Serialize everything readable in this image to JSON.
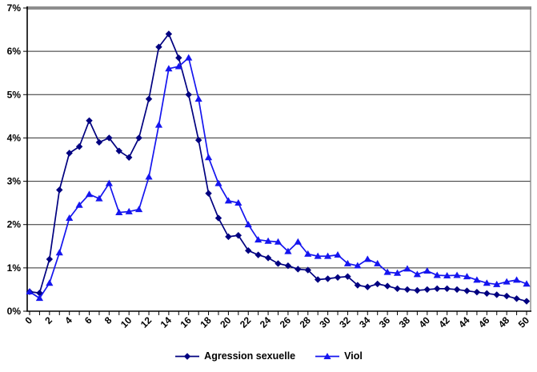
{
  "chart_data": {
    "type": "line",
    "title": "",
    "xlabel": "",
    "ylabel": "",
    "grid": true,
    "legend_position": "bottom",
    "x_range": [
      0,
      50
    ],
    "x_tick_step": 2,
    "x_tick_labels": [
      "0",
      "2",
      "4",
      "6",
      "8",
      "10",
      "12",
      "14",
      "16",
      "18",
      "20",
      "22",
      "24",
      "26",
      "28",
      "30",
      "32",
      "34",
      "36",
      "38",
      "40",
      "42",
      "44",
      "46",
      "48",
      "50"
    ],
    "y_axis": {
      "min": 0,
      "max": 7,
      "step": 1,
      "tick_labels": [
        "0%",
        "1%",
        "2%",
        "3%",
        "4%",
        "5%",
        "6%",
        "7%"
      ]
    },
    "x_values": [
      0,
      1,
      2,
      3,
      4,
      5,
      6,
      7,
      8,
      9,
      10,
      11,
      12,
      13,
      14,
      15,
      16,
      17,
      18,
      19,
      20,
      21,
      22,
      23,
      24,
      25,
      26,
      27,
      28,
      29,
      30,
      31,
      32,
      33,
      34,
      35,
      36,
      37,
      38,
      39,
      40,
      41,
      42,
      43,
      44,
      45,
      46,
      47,
      48,
      49,
      50
    ],
    "series": [
      {
        "name": "Agression sexuelle",
        "marker": "diamond",
        "color": "#000080",
        "values": [
          0.45,
          0.42,
          1.2,
          2.8,
          3.65,
          3.8,
          4.4,
          3.9,
          4.0,
          3.7,
          3.55,
          4.0,
          4.9,
          6.1,
          6.4,
          5.85,
          5.0,
          3.95,
          2.72,
          2.15,
          1.72,
          1.75,
          1.4,
          1.3,
          1.23,
          1.1,
          1.05,
          0.97,
          0.95,
          0.73,
          0.75,
          0.78,
          0.8,
          0.6,
          0.56,
          0.63,
          0.58,
          0.52,
          0.5,
          0.48,
          0.5,
          0.52,
          0.52,
          0.5,
          0.47,
          0.44,
          0.41,
          0.38,
          0.35,
          0.29,
          0.23
        ]
      },
      {
        "name": "Viol",
        "marker": "triangle",
        "color": "#1515EF",
        "values": [
          0.45,
          0.3,
          0.65,
          1.35,
          2.15,
          2.45,
          2.7,
          2.6,
          2.95,
          2.28,
          2.3,
          2.35,
          3.1,
          4.3,
          5.6,
          5.65,
          5.85,
          4.9,
          3.55,
          2.95,
          2.55,
          2.5,
          2.0,
          1.65,
          1.62,
          1.6,
          1.38,
          1.6,
          1.32,
          1.27,
          1.27,
          1.3,
          1.1,
          1.05,
          1.2,
          1.1,
          0.9,
          0.88,
          0.98,
          0.85,
          0.93,
          0.83,
          0.82,
          0.83,
          0.8,
          0.72,
          0.65,
          0.62,
          0.68,
          0.72,
          0.63
        ]
      }
    ]
  }
}
